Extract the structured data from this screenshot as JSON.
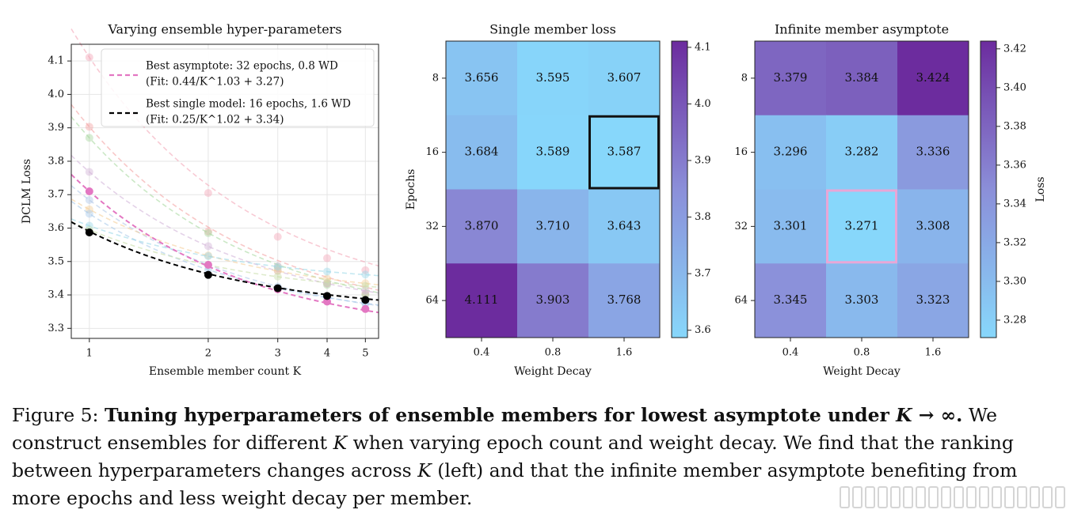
{
  "chart_data": [
    {
      "type": "line",
      "title": "Varying ensemble hyper-parameters",
      "xlabel": "Ensemble member count K",
      "ylabel": "DCLM Loss",
      "x_scale": "log",
      "xticks": [
        "1",
        "2",
        "3",
        "4",
        "5"
      ],
      "yticks": [
        "3.3",
        "3.4",
        "3.5",
        "3.6",
        "3.7",
        "3.8",
        "3.9",
        "4.0",
        "4.1"
      ],
      "ylim": [
        3.27,
        4.15
      ],
      "xlim": [
        0.9,
        5.4
      ],
      "grid": true,
      "legend_position": "top-right",
      "legend": [
        {
          "label": "Best asymptote: 32 epochs, 0.8 WD",
          "sub": "(Fit: 0.44/K^1.03 + 3.27)",
          "color": "#e377c2",
          "style": "dashed"
        },
        {
          "label": "Best single model: 16 epochs, 1.6 WD",
          "sub": "(Fit: 0.25/K^1.02 + 3.34)",
          "color": "#000000",
          "style": "dashed"
        }
      ],
      "series": [
        {
          "x": [
            1,
            2,
            3,
            4,
            5
          ],
          "y": [
            4.111,
            3.705,
            3.574,
            3.51,
            3.474
          ],
          "fit": [
            0.766,
            1.0,
            3.345
          ],
          "color": "#f4a6b8",
          "alpha": 0.45
        },
        {
          "x": [
            1,
            2,
            3,
            4,
            5
          ],
          "y": [
            3.903,
            3.59,
            3.486,
            3.434,
            3.404
          ],
          "fit": [
            0.6,
            1.0,
            3.303
          ],
          "color": "#f4a3a3",
          "alpha": 0.45
        },
        {
          "x": [
            1,
            2,
            3,
            4,
            5
          ],
          "y": [
            3.87,
            3.585,
            3.48,
            3.43,
            3.4
          ],
          "fit": [
            0.569,
            1.0,
            3.301
          ],
          "color": "#a8d8a0",
          "alpha": 0.45
        },
        {
          "x": [
            1,
            2,
            3,
            4,
            5
          ],
          "y": [
            3.768,
            3.546,
            3.472,
            3.435,
            3.413
          ],
          "fit": [
            0.445,
            1.0,
            3.323
          ],
          "color": "#d2b4d8",
          "alpha": 0.45
        },
        {
          "x": [
            1,
            2,
            3,
            4,
            5
          ],
          "y": [
            3.684,
            3.49,
            3.425,
            3.393,
            3.374
          ],
          "fit": [
            0.388,
            1.0,
            3.296
          ],
          "color": "#b0c8e8",
          "alpha": 0.45
        },
        {
          "x": [
            1,
            2,
            3,
            4,
            5
          ],
          "y": [
            3.656,
            3.518,
            3.472,
            3.449,
            3.435
          ],
          "fit": [
            0.277,
            1.0,
            3.379
          ],
          "color": "#f5cf9a",
          "alpha": 0.45
        },
        {
          "x": [
            1,
            2,
            3,
            4,
            5
          ],
          "y": [
            3.643,
            3.476,
            3.42,
            3.392,
            3.375
          ],
          "fit": [
            0.335,
            1.0,
            3.308
          ],
          "color": "#a9c9ea",
          "alpha": 0.45
        },
        {
          "x": [
            1,
            2,
            3,
            4,
            5
          ],
          "y": [
            3.607,
            3.516,
            3.485,
            3.47,
            3.461
          ],
          "fit": [
            0.183,
            1.0,
            3.424
          ],
          "color": "#9bd8e8",
          "alpha": 0.45
        },
        {
          "x": [
            1,
            2,
            3,
            4,
            5
          ],
          "y": [
            3.595,
            3.49,
            3.455,
            3.437,
            3.427
          ],
          "fit": [
            0.211,
            1.0,
            3.384
          ],
          "color": "#c8dda8",
          "alpha": 0.45
        },
        {
          "x": [
            1,
            2,
            3,
            4,
            5
          ],
          "y": [
            3.71,
            3.49,
            3.417,
            3.38,
            3.358
          ],
          "fit": [
            0.44,
            1.03,
            3.27
          ],
          "color": "#e377c2",
          "alpha": 1.0,
          "highlight": true
        },
        {
          "x": [
            1,
            2,
            3,
            4,
            5
          ],
          "y": [
            3.587,
            3.46,
            3.42,
            3.397,
            3.385
          ],
          "fit": [
            0.25,
            1.02,
            3.34
          ],
          "color": "#000000",
          "alpha": 1.0,
          "highlight": true
        }
      ]
    },
    {
      "type": "heatmap",
      "title": "Single member loss",
      "xlabel": "Weight Decay",
      "ylabel": "Epochs",
      "x_categories": [
        "0.4",
        "0.8",
        "1.6"
      ],
      "y_categories": [
        "8",
        "16",
        "32",
        "64"
      ],
      "values": [
        [
          3.656,
          3.595,
          3.607
        ],
        [
          3.684,
          3.589,
          3.587
        ],
        [
          3.87,
          3.71,
          3.643
        ],
        [
          4.111,
          3.903,
          3.768
        ]
      ],
      "value_labels": [
        [
          "3.656",
          "3.595",
          "3.607"
        ],
        [
          "3.684",
          "3.589",
          "3.587"
        ],
        [
          "3.870",
          "3.710",
          "3.643"
        ],
        [
          "4.111",
          "3.903",
          "3.768"
        ]
      ],
      "highlight_cell": {
        "row": 1,
        "col": 2,
        "color": "#111111"
      },
      "colorbar": {
        "min": 3.587,
        "max": 4.111,
        "ticks": [
          "3.6",
          "3.7",
          "3.8",
          "3.9",
          "4.0",
          "4.1"
        ],
        "label": "",
        "low_color": "#87d7fb",
        "high_color": "#6c2c9e"
      }
    },
    {
      "type": "heatmap",
      "title": "Infinite member asymptote",
      "xlabel": "Weight Decay",
      "ylabel": "",
      "x_categories": [
        "0.4",
        "0.8",
        "1.6"
      ],
      "y_categories": [
        "8",
        "16",
        "32",
        "64"
      ],
      "values": [
        [
          3.379,
          3.384,
          3.424
        ],
        [
          3.296,
          3.282,
          3.336
        ],
        [
          3.301,
          3.271,
          3.308
        ],
        [
          3.345,
          3.303,
          3.323
        ]
      ],
      "value_labels": [
        [
          "3.379",
          "3.384",
          "3.424"
        ],
        [
          "3.296",
          "3.282",
          "3.336"
        ],
        [
          "3.301",
          "3.271",
          "3.308"
        ],
        [
          "3.345",
          "3.303",
          "3.323"
        ]
      ],
      "highlight_cell": {
        "row": 2,
        "col": 1,
        "color": "#e9a6d6"
      },
      "colorbar": {
        "min": 3.271,
        "max": 3.424,
        "ticks": [
          "3.28",
          "3.30",
          "3.32",
          "3.34",
          "3.36",
          "3.38",
          "3.40",
          "3.42"
        ],
        "label": "Loss",
        "low_color": "#87d7fb",
        "high_color": "#6c2c9e"
      }
    }
  ],
  "caption": {
    "label": "Figure 5: ",
    "bold": "Tuning hyperparameters of ensemble members for lowest asymptote under ",
    "bold_math": "K → ∞",
    "bold_end": ".",
    "seg1": " We construct ensembles for different ",
    "math1": "K",
    "seg2": " when varying epoch count and weight decay. We find that the ranking between hyperparameters changes across ",
    "math2": "K",
    "seg3": " (left) and that the infinite member asymptote benefiting from more epochs and less weight decay per member."
  }
}
